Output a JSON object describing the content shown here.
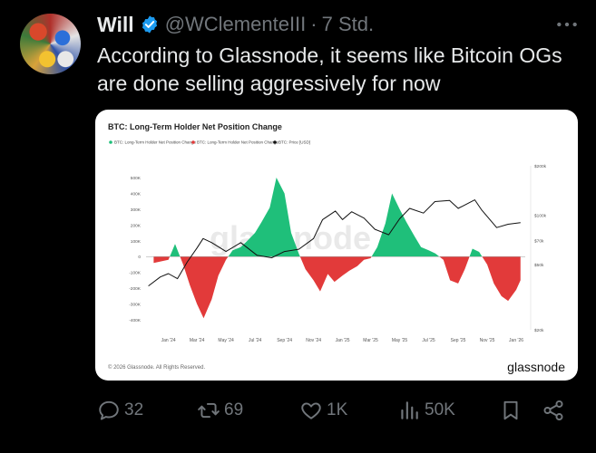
{
  "tweet": {
    "author_name": "Will",
    "author_handle": "@WClementeIII",
    "separator": "·",
    "timestamp": "7 Std.",
    "text": "According to Glassnode, it seems like Bitcoin OGs are done selling aggressively for now"
  },
  "actions": {
    "replies": "32",
    "reposts": "69",
    "likes": "1K",
    "views": "50K"
  },
  "icons": [
    "verified-badge-icon",
    "more-icon",
    "reply-icon",
    "repost-icon",
    "like-icon",
    "views-icon",
    "bookmark-icon",
    "share-icon"
  ],
  "colors": {
    "accent": "#1d9bf0",
    "positive": "#1fbf7a",
    "negative": "#e23a3a",
    "price": "#000000"
  },
  "chart_data": {
    "type": "area",
    "title": "BTC: Long-Term Holder Net Position Change",
    "legend": [
      "BTC: Long-Term Holder Net Position Change",
      "BTC: Long-Term Holder Net Position Change",
      "BTC: Price [USD]"
    ],
    "legend_placement": "top-left",
    "watermark": "glassnode",
    "copyright": "© 2026 Glassnode. All Rights Reserved.",
    "brand": "glassnode",
    "x_ticks": [
      "Jan '24",
      "Mar '24",
      "May '24",
      "Jul '24",
      "Sep '24",
      "Nov '24",
      "Jan '25",
      "Mar '25",
      "May '25",
      "Jul '25",
      "Sep '25",
      "Nov '25",
      "Jan '26"
    ],
    "y_left_ticks": [
      "500K",
      "400K",
      "300K",
      "200K",
      "100K",
      "0",
      "-100K",
      "-200K",
      "-300K",
      "-400K"
    ],
    "y_left_range": [
      -400000,
      500000
    ],
    "y_right_ticks": [
      "$200k",
      "$100k",
      "$70k",
      "$50k",
      "$20k"
    ],
    "y_right_scale": "log",
    "series": [
      {
        "name": "BTC: Long-Term Holder Net Position Change",
        "x": [
          "2023-12-01",
          "2024-01-01",
          "2024-01-15",
          "2024-02-01",
          "2024-02-15",
          "2024-03-01",
          "2024-03-15",
          "2024-04-01",
          "2024-04-15",
          "2024-05-01",
          "2024-05-15",
          "2024-06-01",
          "2024-06-15",
          "2024-07-01",
          "2024-07-15",
          "2024-08-01",
          "2024-08-15",
          "2024-09-01",
          "2024-09-15",
          "2024-10-01",
          "2024-10-15",
          "2024-11-01",
          "2024-11-15",
          "2024-12-01",
          "2024-12-15",
          "2025-01-01",
          "2025-01-15",
          "2025-02-01",
          "2025-02-15",
          "2025-03-01",
          "2025-03-15",
          "2025-04-01",
          "2025-04-15",
          "2025-05-01",
          "2025-05-15",
          "2025-06-01",
          "2025-06-15",
          "2025-07-01",
          "2025-07-15",
          "2025-08-01",
          "2025-08-15",
          "2025-09-01",
          "2025-09-15",
          "2025-10-01",
          "2025-10-15",
          "2025-11-01",
          "2025-11-15",
          "2025-12-01",
          "2025-12-15",
          "2026-01-01",
          "2026-01-10"
        ],
        "y": [
          -40000,
          -20000,
          80000,
          -50000,
          -180000,
          -300000,
          -390000,
          -270000,
          -120000,
          -20000,
          40000,
          60000,
          100000,
          150000,
          220000,
          310000,
          500000,
          400000,
          150000,
          20000,
          -80000,
          -150000,
          -220000,
          -110000,
          -160000,
          -120000,
          -90000,
          -60000,
          -20000,
          -10000,
          60000,
          210000,
          400000,
          300000,
          220000,
          130000,
          60000,
          40000,
          20000,
          -20000,
          -150000,
          -170000,
          -80000,
          50000,
          30000,
          -50000,
          -170000,
          -250000,
          -280000,
          -210000,
          -150000
        ]
      },
      {
        "name": "BTC: Price [USD]",
        "x": [
          "2023-11-20",
          "2023-12-15",
          "2024-01-01",
          "2024-01-20",
          "2024-02-10",
          "2024-03-01",
          "2024-03-14",
          "2024-04-01",
          "2024-05-01",
          "2024-06-01",
          "2024-07-05",
          "2024-08-05",
          "2024-09-01",
          "2024-10-01",
          "2024-11-01",
          "2024-11-20",
          "2024-12-17",
          "2025-01-01",
          "2025-01-20",
          "2025-02-15",
          "2025-03-10",
          "2025-04-08",
          "2025-05-01",
          "2025-05-22",
          "2025-06-20",
          "2025-07-14",
          "2025-08-14",
          "2025-09-01",
          "2025-10-06",
          "2025-10-20",
          "2025-11-21",
          "2025-12-15",
          "2026-01-10"
        ],
        "y": [
          37000,
          42000,
          44000,
          41000,
          52000,
          63000,
          72000,
          68000,
          60000,
          68000,
          57000,
          55000,
          60000,
          62000,
          72000,
          94000,
          106000,
          94000,
          105000,
          96000,
          82000,
          76000,
          95000,
          110000,
          103000,
          121000,
          123000,
          110000,
          124000,
          108000,
          84000,
          88000,
          90000
        ]
      }
    ]
  }
}
